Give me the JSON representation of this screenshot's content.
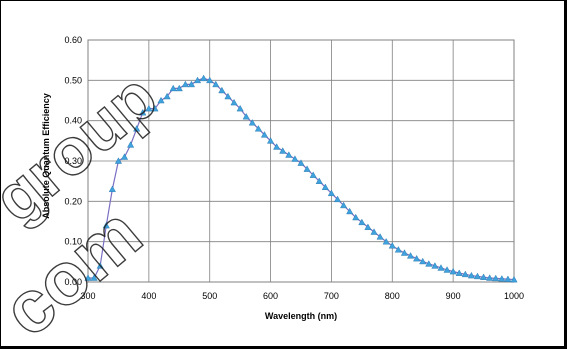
{
  "watermark": {
    "line1": "group",
    "line2": "com"
  },
  "chart_data": {
    "type": "line",
    "title": "",
    "xlabel": "Wavelength (nm)",
    "ylabel": "Absolute Quantum Efficiency",
    "xlim": [
      300,
      1000
    ],
    "ylim": [
      0,
      0.6
    ],
    "x_ticks": [
      300,
      400,
      500,
      600,
      700,
      800,
      900,
      1000
    ],
    "y_ticks": [
      "0.00",
      "0.10",
      "0.20",
      "0.30",
      "0.40",
      "0.50",
      "0.60"
    ],
    "grid": true,
    "legend": "none",
    "line_color": "#7a6fc4",
    "marker_color": "#3fa2dc",
    "marker": "triangle",
    "series": [
      {
        "x": [
          300,
          310,
          320,
          330,
          340,
          350,
          360,
          370,
          380,
          390,
          400,
          410,
          420,
          430,
          440,
          450,
          460,
          470,
          480,
          490,
          500,
          510,
          520,
          530,
          540,
          550,
          560,
          570,
          580,
          590,
          600,
          610,
          620,
          630,
          640,
          650,
          660,
          670,
          680,
          690,
          700,
          710,
          720,
          730,
          740,
          750,
          760,
          770,
          780,
          790,
          800,
          810,
          820,
          830,
          840,
          850,
          860,
          870,
          880,
          890,
          900,
          910,
          920,
          930,
          940,
          950,
          960,
          970,
          980,
          990,
          1000
        ],
        "y": [
          0.01,
          0.01,
          0.04,
          0.14,
          0.23,
          0.3,
          0.31,
          0.34,
          0.38,
          0.42,
          0.43,
          0.43,
          0.45,
          0.46,
          0.48,
          0.48,
          0.49,
          0.49,
          0.5,
          0.505,
          0.5,
          0.49,
          0.475,
          0.46,
          0.445,
          0.43,
          0.41,
          0.395,
          0.38,
          0.365,
          0.35,
          0.335,
          0.325,
          0.315,
          0.305,
          0.295,
          0.28,
          0.265,
          0.25,
          0.235,
          0.22,
          0.205,
          0.19,
          0.175,
          0.16,
          0.148,
          0.136,
          0.124,
          0.112,
          0.1,
          0.09,
          0.08,
          0.072,
          0.065,
          0.058,
          0.051,
          0.045,
          0.04,
          0.035,
          0.03,
          0.026,
          0.022,
          0.019,
          0.016,
          0.014,
          0.012,
          0.01,
          0.009,
          0.008,
          0.007,
          0.006
        ]
      }
    ]
  }
}
